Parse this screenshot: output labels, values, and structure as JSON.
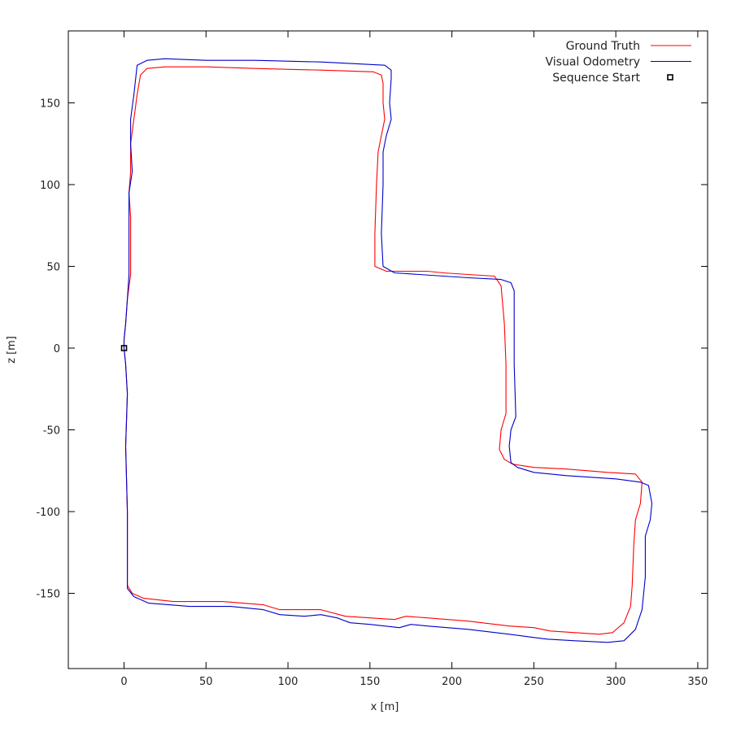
{
  "chart_data": {
    "type": "line",
    "xlabel": "x [m]",
    "ylabel": "z [m]",
    "xlim": [
      -34,
      356
    ],
    "ylim": [
      -196,
      194
    ],
    "xticks": [
      0,
      50,
      100,
      150,
      200,
      250,
      300,
      350
    ],
    "yticks": [
      -150,
      -100,
      -50,
      0,
      50,
      100,
      150
    ],
    "grid": false,
    "legend_position": "top-right",
    "series": [
      {
        "name": "Ground Truth",
        "color": "#ff0000",
        "points": [
          [
            0,
            0
          ],
          [
            1,
            -10
          ],
          [
            2,
            -28
          ],
          [
            1,
            -60
          ],
          [
            2,
            -100
          ],
          [
            2,
            -130
          ],
          [
            2,
            -145
          ],
          [
            5,
            -150
          ],
          [
            12,
            -153
          ],
          [
            30,
            -155
          ],
          [
            60,
            -155
          ],
          [
            85,
            -157
          ],
          [
            95,
            -160
          ],
          [
            110,
            -160
          ],
          [
            120,
            -160
          ],
          [
            135,
            -164
          ],
          [
            150,
            -165
          ],
          [
            165,
            -166
          ],
          [
            172,
            -164
          ],
          [
            185,
            -165
          ],
          [
            210,
            -167
          ],
          [
            235,
            -170
          ],
          [
            250,
            -171
          ],
          [
            260,
            -173
          ],
          [
            275,
            -174
          ],
          [
            290,
            -175
          ],
          [
            298,
            -174
          ],
          [
            305,
            -168
          ],
          [
            309,
            -158
          ],
          [
            310,
            -145
          ],
          [
            311,
            -120
          ],
          [
            312,
            -105
          ],
          [
            315,
            -95
          ],
          [
            316,
            -82
          ],
          [
            312,
            -77
          ],
          [
            295,
            -76
          ],
          [
            270,
            -74
          ],
          [
            250,
            -73
          ],
          [
            237,
            -71
          ],
          [
            232,
            -68
          ],
          [
            229,
            -62
          ],
          [
            230,
            -50
          ],
          [
            233,
            -40
          ],
          [
            233,
            -10
          ],
          [
            232,
            15
          ],
          [
            230,
            38
          ],
          [
            226,
            44
          ],
          [
            210,
            45
          ],
          [
            195,
            46
          ],
          [
            185,
            47
          ],
          [
            170,
            47
          ],
          [
            160,
            47
          ],
          [
            153,
            50
          ],
          [
            153,
            70
          ],
          [
            154,
            100
          ],
          [
            155,
            120
          ],
          [
            157,
            130
          ],
          [
            159,
            140
          ],
          [
            158,
            150
          ],
          [
            158,
            162
          ],
          [
            157,
            167
          ],
          [
            152,
            169
          ],
          [
            120,
            170
          ],
          [
            80,
            171
          ],
          [
            50,
            172
          ],
          [
            25,
            172
          ],
          [
            14,
            171
          ],
          [
            10,
            167
          ],
          [
            8,
            155
          ],
          [
            6,
            140
          ],
          [
            4,
            125
          ],
          [
            4,
            108
          ],
          [
            3,
            95
          ],
          [
            4,
            80
          ],
          [
            4,
            60
          ],
          [
            4,
            45
          ],
          [
            2,
            30
          ],
          [
            1,
            15
          ],
          [
            0,
            5
          ],
          [
            0,
            0
          ]
        ]
      },
      {
        "name": "Visual Odometry",
        "color": "#0000cc",
        "points": [
          [
            0,
            0
          ],
          [
            1,
            -10
          ],
          [
            2,
            -28
          ],
          [
            1,
            -60
          ],
          [
            2,
            -100
          ],
          [
            2,
            -130
          ],
          [
            2,
            -147
          ],
          [
            6,
            -152
          ],
          [
            15,
            -156
          ],
          [
            40,
            -158
          ],
          [
            65,
            -158
          ],
          [
            85,
            -160
          ],
          [
            95,
            -163
          ],
          [
            110,
            -164
          ],
          [
            120,
            -163
          ],
          [
            130,
            -165
          ],
          [
            138,
            -168
          ],
          [
            150,
            -169
          ],
          [
            168,
            -171
          ],
          [
            175,
            -169
          ],
          [
            185,
            -170
          ],
          [
            210,
            -172
          ],
          [
            235,
            -175
          ],
          [
            250,
            -177
          ],
          [
            258,
            -178
          ],
          [
            275,
            -179
          ],
          [
            295,
            -180
          ],
          [
            305,
            -179
          ],
          [
            312,
            -172
          ],
          [
            316,
            -160
          ],
          [
            318,
            -140
          ],
          [
            318,
            -115
          ],
          [
            321,
            -105
          ],
          [
            322,
            -95
          ],
          [
            320,
            -84
          ],
          [
            315,
            -82
          ],
          [
            300,
            -80
          ],
          [
            270,
            -78
          ],
          [
            250,
            -76
          ],
          [
            240,
            -73
          ],
          [
            236,
            -70
          ],
          [
            235,
            -60
          ],
          [
            236,
            -50
          ],
          [
            239,
            -42
          ],
          [
            238,
            -10
          ],
          [
            238,
            15
          ],
          [
            238,
            35
          ],
          [
            236,
            40
          ],
          [
            230,
            42
          ],
          [
            210,
            43
          ],
          [
            195,
            44
          ],
          [
            180,
            45
          ],
          [
            165,
            46
          ],
          [
            158,
            50
          ],
          [
            157,
            70
          ],
          [
            158,
            100
          ],
          [
            158,
            120
          ],
          [
            160,
            130
          ],
          [
            163,
            140
          ],
          [
            162,
            150
          ],
          [
            163,
            165
          ],
          [
            163,
            170
          ],
          [
            159,
            173
          ],
          [
            120,
            175
          ],
          [
            80,
            176
          ],
          [
            50,
            176
          ],
          [
            25,
            177
          ],
          [
            14,
            176
          ],
          [
            8,
            173
          ],
          [
            6,
            155
          ],
          [
            4,
            140
          ],
          [
            4,
            125
          ],
          [
            5,
            108
          ],
          [
            3,
            95
          ],
          [
            3,
            80
          ],
          [
            3,
            60
          ],
          [
            3,
            45
          ],
          [
            2,
            30
          ],
          [
            1,
            15
          ],
          [
            0,
            5
          ],
          [
            0,
            0
          ]
        ]
      },
      {
        "name": "Sequence Start",
        "color": "#000000",
        "marker": "square",
        "points": [
          [
            0,
            0
          ]
        ]
      }
    ]
  }
}
